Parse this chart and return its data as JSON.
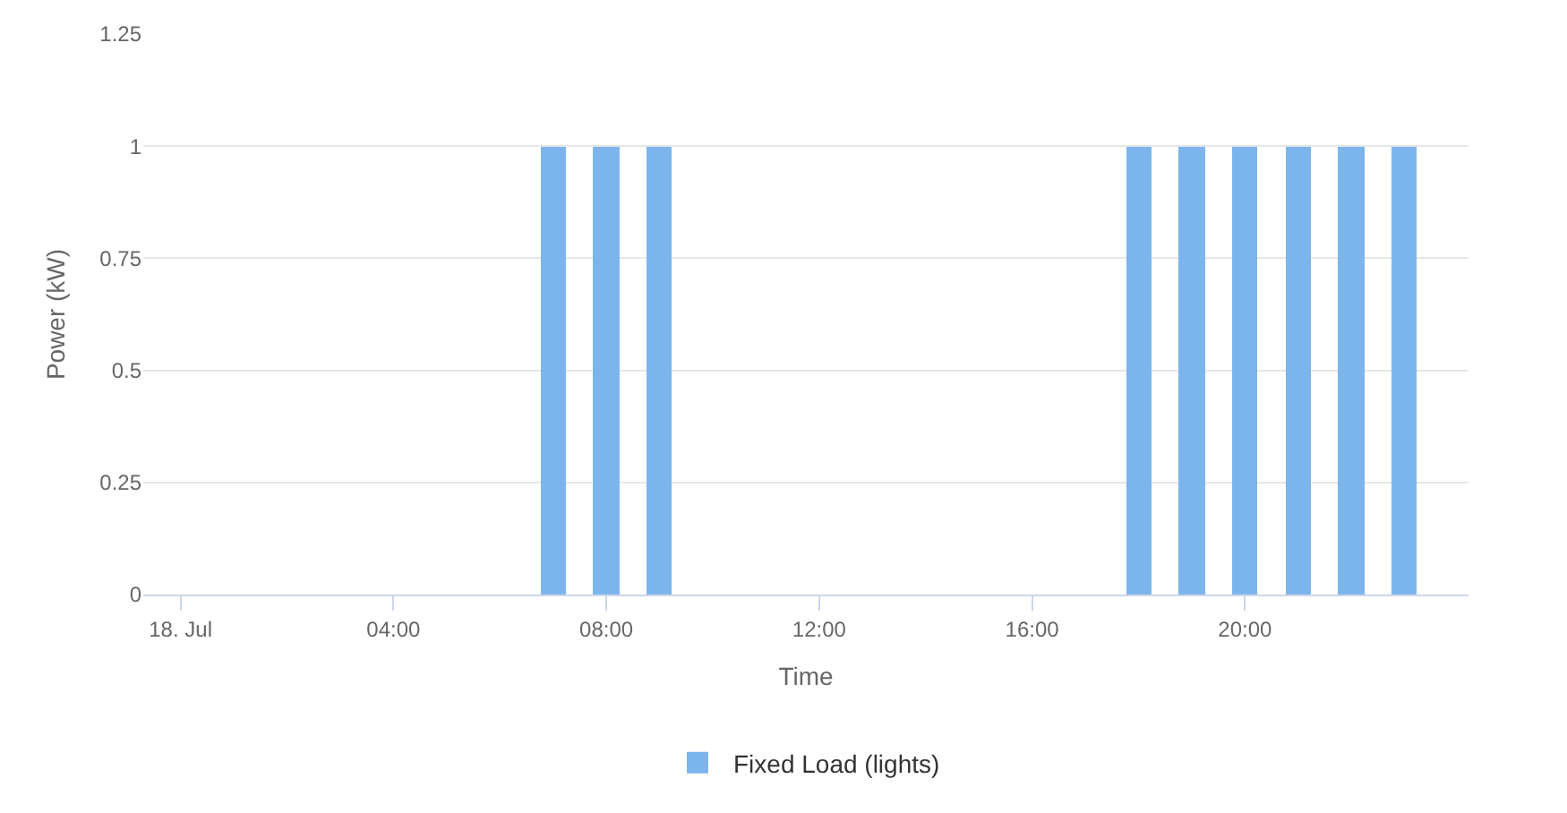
{
  "chart_data": {
    "type": "bar",
    "xlabel": "Time",
    "ylabel": "Power (kW)",
    "x": [
      7,
      8,
      9,
      18,
      19,
      20,
      21,
      22,
      23
    ],
    "series": [
      {
        "name": "Fixed Load (lights)",
        "color": "#7cb5ec",
        "values": [
          1,
          1,
          1,
          1,
          1,
          1,
          1,
          1,
          1
        ]
      }
    ],
    "xlim": [
      -0.7,
      24.2
    ],
    "xticks": [
      {
        "value": 0,
        "label": "18. Jul"
      },
      {
        "value": 4,
        "label": "04:00"
      },
      {
        "value": 8,
        "label": "08:00"
      },
      {
        "value": 12,
        "label": "12:00"
      },
      {
        "value": 16,
        "label": "16:00"
      },
      {
        "value": 20,
        "label": "20:00"
      }
    ],
    "ylim": [
      0,
      1.25
    ],
    "yticks": [
      0,
      0.25,
      0.5,
      0.75,
      1,
      1.25
    ],
    "grid": "y",
    "legend": "bottom"
  }
}
